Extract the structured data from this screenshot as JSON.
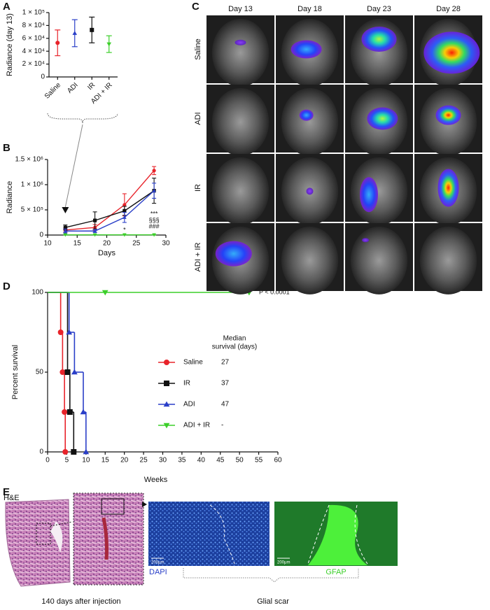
{
  "panel_labels": [
    "A",
    "B",
    "C",
    "D",
    "E"
  ],
  "chart_data": [
    {
      "type": "errorbar",
      "ylabel": "Radiance (day 13)",
      "categories": [
        "Saline",
        "ADI",
        "IR",
        "ADI + IR"
      ],
      "values": [
        53000,
        68000,
        73000,
        51000
      ],
      "errors": [
        20000,
        21000,
        20000,
        13000
      ],
      "colors": [
        "#e8232a",
        "#2a3fc8",
        "#111111",
        "#3ccf2a"
      ],
      "markers": [
        "circle",
        "triangle",
        "square",
        "triangle-down"
      ],
      "ylim": [
        0,
        100000
      ],
      "yticks": [
        0,
        {
          "value": 20000,
          "label": "2 × 10⁴"
        },
        {
          "value": 40000,
          "label": "4 × 10⁴"
        },
        {
          "value": 60000,
          "label": "6 × 10⁴"
        },
        {
          "value": 80000,
          "label": "8 × 10⁴"
        },
        {
          "value": 100000,
          "label": "1 × 10⁵"
        }
      ]
    },
    {
      "type": "line",
      "ylabel": "Radiance",
      "xlabel": "Days",
      "x": [
        13,
        18,
        23,
        28
      ],
      "series": [
        {
          "name": "Saline",
          "color": "#e8232a",
          "marker": "circle",
          "values": [
            100000,
            150000,
            600000,
            1280000
          ],
          "errors": [
            40000,
            60000,
            220000,
            80000
          ]
        },
        {
          "name": "IR",
          "color": "#111111",
          "marker": "square",
          "values": [
            150000,
            290000,
            480000,
            880000
          ],
          "errors": [
            50000,
            170000,
            90000,
            250000
          ]
        },
        {
          "name": "ADI",
          "color": "#2a3fc8",
          "marker": "triangle",
          "values": [
            80000,
            80000,
            350000,
            880000
          ],
          "errors": [
            40000,
            30000,
            100000,
            150000
          ]
        },
        {
          "name": "ADI + IR",
          "color": "#3ccf2a",
          "marker": "triangle-down",
          "values": [
            5000,
            5000,
            5000,
            5000
          ],
          "errors": [
            3000,
            3000,
            3000,
            3000
          ]
        }
      ],
      "annotations": [
        "***",
        "§§§",
        "###",
        "*"
      ],
      "xlim": [
        10,
        30
      ],
      "xticks": [
        10,
        15,
        20,
        25,
        30
      ],
      "ylim": [
        0,
        1500000
      ],
      "yticks": [
        0,
        {
          "value": 500000,
          "label": "5 × 10⁵"
        },
        {
          "value": 1000000,
          "label": "1 × 10⁶"
        },
        {
          "value": 1500000,
          "label": "1.5 × 10⁶"
        }
      ]
    },
    {
      "type": "step",
      "ylabel": "Percent survival",
      "xlabel": "Weeks",
      "legend_title": [
        "Median",
        "survival (days)"
      ],
      "annotation": "P < 0.0001",
      "series": [
        {
          "name": "Saline",
          "color": "#e8232a",
          "marker": "circle",
          "median": 27,
          "x": [
            0,
            3.4,
            3.9,
            4.4,
            4.6
          ],
          "values": [
            100,
            75,
            50,
            25,
            0
          ]
        },
        {
          "name": "IR",
          "color": "#111111",
          "marker": "square",
          "median": 37,
          "x": [
            0,
            5.2,
            5.8,
            6.8
          ],
          "values": [
            100,
            50,
            25,
            0
          ]
        },
        {
          "name": "ADI",
          "color": "#2a3fc8",
          "marker": "triangle",
          "median": 47,
          "x": [
            0,
            5.6,
            7,
            9.3,
            10
          ],
          "values": [
            100,
            75,
            50,
            25,
            0
          ]
        },
        {
          "name": "ADI + IR",
          "color": "#3ccf2a",
          "marker": "triangle-down",
          "median": "-",
          "x": [
            0,
            15,
            52.5
          ],
          "values": [
            100,
            100,
            100
          ]
        }
      ],
      "xlim": [
        0,
        60
      ],
      "xticks": [
        0,
        5,
        10,
        15,
        20,
        25,
        30,
        35,
        40,
        45,
        50,
        55,
        60
      ],
      "ylim": [
        0,
        100
      ],
      "yticks": [
        0,
        50,
        100
      ]
    }
  ],
  "panel_c": {
    "columns": [
      "Day 13",
      "Day 18",
      "Day 23",
      "Day 28"
    ],
    "rows": [
      "Saline",
      "ADI",
      "IR",
      "ADI + IR"
    ]
  },
  "panel_e": {
    "he_label": "H&E",
    "dapi": "DAPI",
    "gfap": "GFAP",
    "scale_bars": [
      "200μm",
      "200μm"
    ],
    "caption": "140  days after injection",
    "scar": "Glial scar"
  }
}
